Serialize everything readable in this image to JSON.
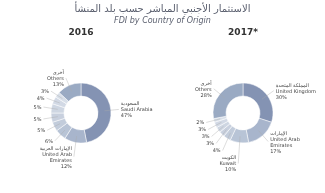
{
  "title": "الاستثمار الأجنبي المباشر حسب بلد المنشأ",
  "subtitle": "FDI by Country of Origin",
  "chart_data": [
    {
      "type": "pie",
      "title": "2016",
      "categories": [
        "السعودية\nSaudi Arabia",
        "الإمارات العربية\nUnited Arab\nEmirates",
        null,
        null,
        null,
        null,
        null,
        null,
        "أخرى\nOthers"
      ],
      "values": [
        47,
        12,
        6,
        5,
        5,
        5,
        4,
        3,
        13
      ],
      "value_labels": [
        "47%",
        "12%",
        "6%",
        "5%",
        "5%",
        "5%",
        "4%",
        "3%",
        "13%"
      ],
      "data_labels": true,
      "colors": [
        "#8493b3",
        "#a8b5cc",
        "#b8c4d6",
        "#c2ccdb",
        "#c8d0de",
        "#ced6e2",
        "#d2d9e5",
        "#d8dfe9",
        "#9aaac3"
      ]
    },
    {
      "type": "pie",
      "title": "2017*",
      "categories": [
        "المملكة المتحدة\nUnited Kingdom",
        "الإمارات\nUnited Arab\nEmirates",
        "الكويت\nKuwait",
        null,
        null,
        null,
        null,
        null,
        "أخرى\nOthers"
      ],
      "values": [
        30,
        17,
        10,
        4,
        3,
        3,
        3,
        2,
        28
      ],
      "value_labels": [
        "30%",
        "17%",
        "10%",
        "4%",
        "3%",
        "3%",
        "3%",
        "2%",
        "28%"
      ],
      "data_labels": true,
      "colors": [
        "#8493b3",
        "#a8b5cc",
        "#b8c4d6",
        "#c2ccdb",
        "#c8d0de",
        "#ced6e2",
        "#d2d9e5",
        "#d8dfe9",
        "#9aaac3"
      ]
    }
  ]
}
